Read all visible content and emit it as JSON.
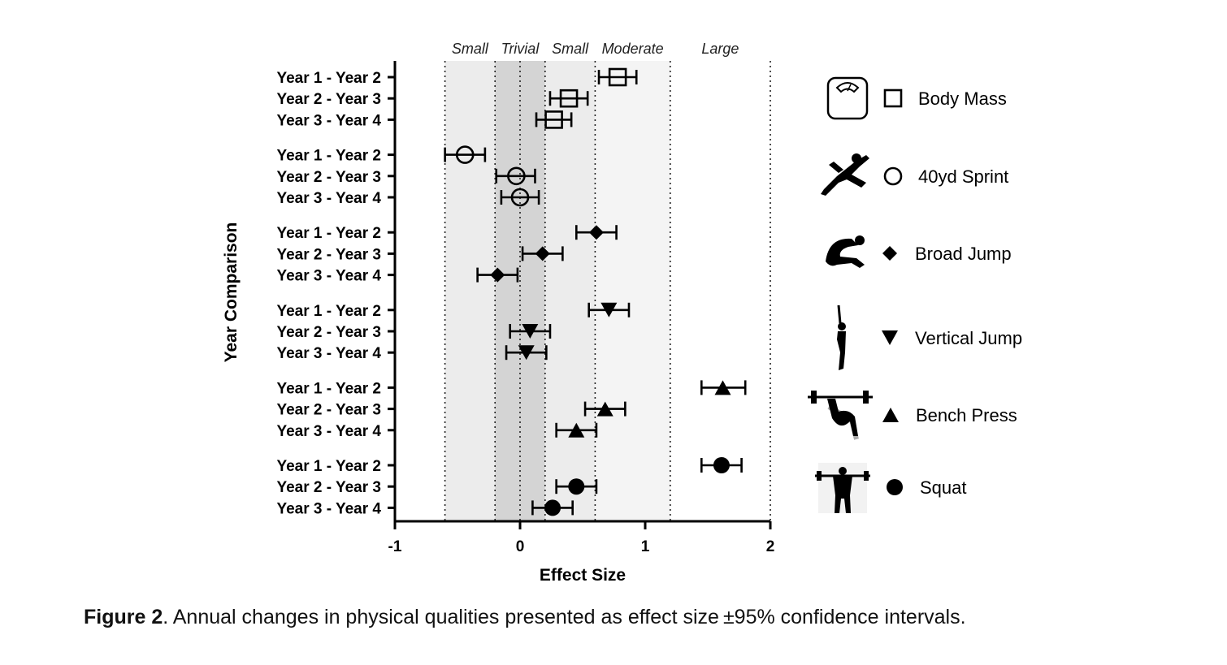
{
  "caption": {
    "label": "Figure 2",
    "text": ". Annual changes in physical qualities presented as effect size ±95% confidence intervals."
  },
  "chart_data": {
    "type": "scatter",
    "orientation": "horizontal-forest-plot",
    "xlabel": "Effect Size",
    "ylabel": "Year Comparison",
    "xlim": [
      -1,
      2
    ],
    "x_ticks": [
      -1,
      0,
      1,
      2
    ],
    "x_tick_labels": [
      "-1",
      "0",
      "1",
      "2"
    ],
    "threshold_lines": [
      -0.6,
      -0.2,
      0,
      0.2,
      0.6,
      1.2,
      2.0
    ],
    "zones": [
      {
        "label": "Small",
        "from": -0.6,
        "to": -0.2,
        "shade": "#ececec"
      },
      {
        "label": "Trivial",
        "from": -0.2,
        "to": 0.2,
        "shade": "#d4d4d4"
      },
      {
        "label": "Small",
        "from": 0.2,
        "to": 0.6,
        "shade": "#ececec"
      },
      {
        "label": "Moderate",
        "from": 0.6,
        "to": 1.2,
        "shade": "#f4f4f4"
      },
      {
        "label": "Large",
        "from": 1.2,
        "to": 2.0,
        "shade": "#ffffff"
      }
    ],
    "series": [
      {
        "name": "Body Mass",
        "marker": "square-open",
        "icon": "weighing-scale-icon",
        "points": [
          {
            "label": "Year 1 - Year 2",
            "value": 0.78,
            "ci": [
              0.63,
              0.93
            ]
          },
          {
            "label": "Year 2 - Year 3",
            "value": 0.39,
            "ci": [
              0.24,
              0.54
            ]
          },
          {
            "label": "Year 3 - Year 4",
            "value": 0.27,
            "ci": [
              0.13,
              0.41
            ]
          }
        ]
      },
      {
        "name": "40yd Sprint",
        "marker": "circle-open",
        "icon": "sprinter-icon",
        "points": [
          {
            "label": "Year 1 - Year 2",
            "value": -0.44,
            "ci": [
              -0.6,
              -0.28
            ]
          },
          {
            "label": "Year 2 - Year 3",
            "value": -0.03,
            "ci": [
              -0.19,
              0.12
            ]
          },
          {
            "label": "Year 3 - Year 4",
            "value": 0.0,
            "ci": [
              -0.15,
              0.15
            ]
          }
        ]
      },
      {
        "name": "Broad Jump",
        "marker": "diamond",
        "icon": "long-jumper-icon",
        "points": [
          {
            "label": "Year 1 - Year 2",
            "value": 0.61,
            "ci": [
              0.45,
              0.77
            ]
          },
          {
            "label": "Year 2 - Year 3",
            "value": 0.18,
            "ci": [
              0.02,
              0.34
            ]
          },
          {
            "label": "Year 3 - Year 4",
            "value": -0.18,
            "ci": [
              -0.34,
              -0.02
            ]
          }
        ]
      },
      {
        "name": "Vertical Jump",
        "marker": "triangle-down",
        "icon": "vertical-jumper-icon",
        "points": [
          {
            "label": "Year 1 - Year 2",
            "value": 0.71,
            "ci": [
              0.55,
              0.87
            ]
          },
          {
            "label": "Year 2 - Year 3",
            "value": 0.08,
            "ci": [
              -0.08,
              0.24
            ]
          },
          {
            "label": "Year 3 - Year 4",
            "value": 0.05,
            "ci": [
              -0.11,
              0.21
            ]
          }
        ]
      },
      {
        "name": "Bench Press",
        "marker": "triangle-up",
        "icon": "bench-press-icon",
        "points": [
          {
            "label": "Year 1 - Year 2",
            "value": 1.62,
            "ci": [
              1.45,
              1.8
            ]
          },
          {
            "label": "Year 2 - Year 3",
            "value": 0.68,
            "ci": [
              0.52,
              0.84
            ]
          },
          {
            "label": "Year 3 - Year 4",
            "value": 0.45,
            "ci": [
              0.29,
              0.61
            ]
          }
        ]
      },
      {
        "name": "Squat",
        "marker": "circle-filled",
        "icon": "squat-lifter-icon",
        "points": [
          {
            "label": "Year 1 - Year 2",
            "value": 1.61,
            "ci": [
              1.45,
              1.77
            ]
          },
          {
            "label": "Year 2 - Year 3",
            "value": 0.45,
            "ci": [
              0.29,
              0.61
            ]
          },
          {
            "label": "Year 3 - Year 4",
            "value": 0.26,
            "ci": [
              0.1,
              0.42
            ]
          }
        ]
      }
    ]
  }
}
